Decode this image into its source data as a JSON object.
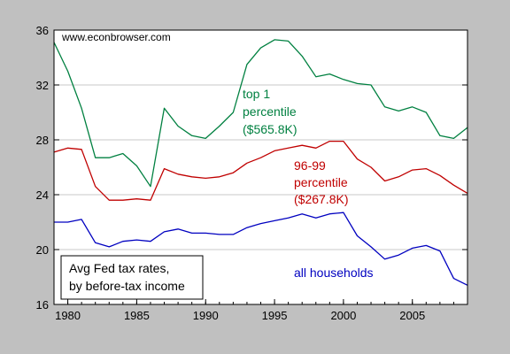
{
  "chart_data": {
    "type": "line",
    "title": "",
    "xlabel": "",
    "ylabel": "",
    "xlim": [
      1979,
      2009
    ],
    "ylim": [
      16,
      36
    ],
    "x_ticks": [
      1980,
      1985,
      1990,
      1995,
      2000,
      2005
    ],
    "y_ticks": [
      16,
      20,
      24,
      28,
      32,
      36
    ],
    "grid": "horizontal",
    "watermark": "www.econbrowser.com",
    "legend_box": {
      "line1": "Avg Fed tax rates,",
      "line2": "by before-tax income"
    },
    "x": [
      1979,
      1980,
      1981,
      1982,
      1983,
      1984,
      1985,
      1986,
      1987,
      1988,
      1989,
      1990,
      1991,
      1992,
      1993,
      1994,
      1995,
      1996,
      1997,
      1998,
      1999,
      2000,
      2001,
      2002,
      2003,
      2004,
      2005,
      2006,
      2007,
      2008,
      2009
    ],
    "series": [
      {
        "key": "top1",
        "color": "#008040",
        "labels": [
          "top 1",
          "percentile",
          "($565.8K)"
        ],
        "values": [
          35.1,
          33.0,
          30.3,
          26.7,
          26.7,
          27.0,
          26.1,
          24.6,
          30.3,
          29.0,
          28.3,
          28.1,
          29.0,
          30.0,
          33.5,
          34.7,
          35.3,
          35.2,
          34.1,
          32.6,
          32.8,
          32.4,
          32.1,
          32.0,
          30.4,
          30.1,
          30.4,
          30.0,
          28.3,
          28.1,
          28.9
        ]
      },
      {
        "key": "p96_99",
        "color": "#c00000",
        "labels": [
          "96-99",
          "percentile",
          "($267.8K)"
        ],
        "values": [
          27.1,
          27.4,
          27.3,
          24.6,
          23.6,
          23.6,
          23.7,
          23.6,
          25.9,
          25.5,
          25.3,
          25.2,
          25.3,
          25.6,
          26.3,
          26.7,
          27.2,
          27.4,
          27.6,
          27.4,
          27.9,
          27.9,
          26.6,
          26.0,
          25.0,
          25.3,
          25.8,
          25.9,
          25.4,
          24.7,
          24.1
        ]
      },
      {
        "key": "all",
        "color": "#0000c0",
        "labels": [
          "all households"
        ],
        "values": [
          22.0,
          22.0,
          22.2,
          20.5,
          20.2,
          20.6,
          20.7,
          20.6,
          21.3,
          21.5,
          21.2,
          21.2,
          21.1,
          21.1,
          21.6,
          21.9,
          22.1,
          22.3,
          22.6,
          22.3,
          22.6,
          22.7,
          21.0,
          20.2,
          19.3,
          19.6,
          20.1,
          20.3,
          19.9,
          17.9,
          17.4
        ]
      }
    ]
  }
}
